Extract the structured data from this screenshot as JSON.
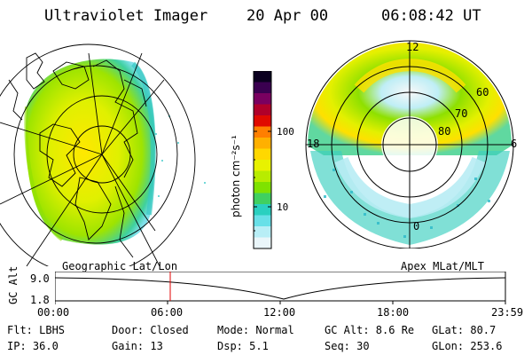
{
  "header": {
    "title": "Ultraviolet Imager",
    "date": "20 Apr 00",
    "time": "06:08:42 UT"
  },
  "colorbar": {
    "label": "photon cm⁻²s⁻¹",
    "ticks": [
      "100",
      "10"
    ],
    "colors": [
      "#0b0020",
      "#3a0050",
      "#7a0060",
      "#b0002a",
      "#e00a00",
      "#ff7f00",
      "#ffb000",
      "#ffd800",
      "#e8f200",
      "#b8ec00",
      "#7fe200",
      "#40d060",
      "#2ad0c0",
      "#68e0e8",
      "#b8eef6",
      "#eaf6fa"
    ]
  },
  "left_panel": {
    "label": "Geographic Lat/Lon"
  },
  "right_panel": {
    "label": "Apex MLat/MLT",
    "clock_labels": {
      "top": "12",
      "left": "18",
      "right": "6",
      "bottom": "0"
    },
    "lat_labels": [
      "60",
      "70",
      "80"
    ]
  },
  "timeline": {
    "ylabel": "GC Alt",
    "yticks": [
      "9.0",
      "1.8"
    ],
    "xticks": [
      "00:00",
      "06:00",
      "12:00",
      "18:00",
      "23:59"
    ],
    "marker_color": "#e00000"
  },
  "info": {
    "row1": {
      "flt": "Flt: LBHS",
      "door": "Door: Closed",
      "mode": "Mode: Normal",
      "gcalt": "GC Alt: 8.6 Re",
      "glat": "GLat:  80.7"
    },
    "row2": {
      "ip": "IP: 36.0",
      "gain": "Gain: 13",
      "dsp": "Dsp:    5.1",
      "seq": "Seq: 30",
      "glon": "GLon: 253.6"
    }
  }
}
